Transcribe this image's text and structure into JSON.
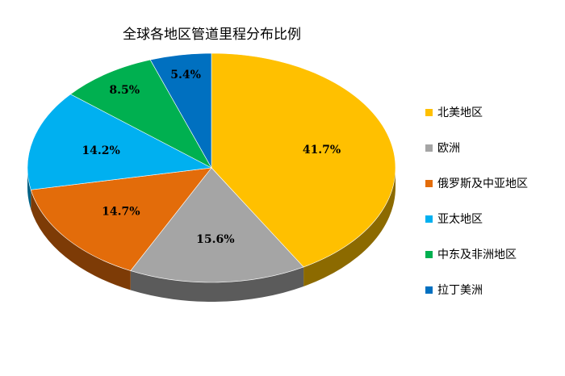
{
  "chart_data": {
    "type": "pie",
    "title": "全球各地区管道里程分布比例",
    "categories": [
      "北美地区",
      "欧洲",
      "俄罗斯及中亚地区",
      "亚太地区",
      "中东及非洲地区",
      "拉丁美洲"
    ],
    "values": [
      41.7,
      15.6,
      14.7,
      14.2,
      8.5,
      5.4
    ],
    "value_labels": [
      "41.7%",
      "15.6%",
      "14.7%",
      "14.2%",
      "8.5%",
      "5.4%"
    ],
    "colors": [
      "#FFC000",
      "#A5A5A5",
      "#E36C0A",
      "#00B0F0",
      "#00B050",
      "#0070C0"
    ],
    "legend_position": "right",
    "style": "3d-pie"
  }
}
